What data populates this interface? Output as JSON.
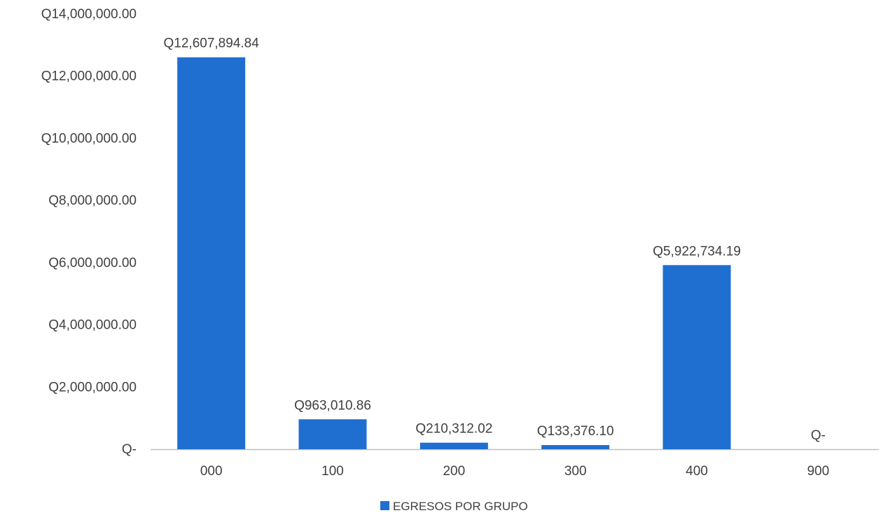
{
  "chart_data": {
    "type": "bar",
    "title": "",
    "xlabel": "",
    "ylabel": "",
    "categories": [
      "000",
      "100",
      "200",
      "300",
      "400",
      "900"
    ],
    "series": [
      {
        "name": "EGRESOS POR GRUPO",
        "values": [
          12607894.84,
          963010.86,
          210312.02,
          133376.1,
          5922734.19,
          0
        ],
        "data_labels": [
          "Q12,607,894.84",
          "Q963,010.86",
          "Q210,312.02",
          "Q133,376.10",
          "Q5,922,734.19",
          "Q-"
        ],
        "color": "#1F6FD1"
      }
    ],
    "ylim": [
      0,
      14000000
    ],
    "y_ticks": [
      0,
      2000000,
      4000000,
      6000000,
      8000000,
      10000000,
      12000000,
      14000000
    ],
    "y_tick_labels": [
      "Q-",
      "Q2,000,000.00",
      "Q4,000,000.00",
      "Q6,000,000.00",
      "Q8,000,000.00",
      "Q10,000,000.00",
      "Q12,000,000.00",
      "Q14,000,000.00"
    ],
    "grid": false,
    "legend_position": "bottom",
    "axis_color": "#BFBFBF"
  }
}
